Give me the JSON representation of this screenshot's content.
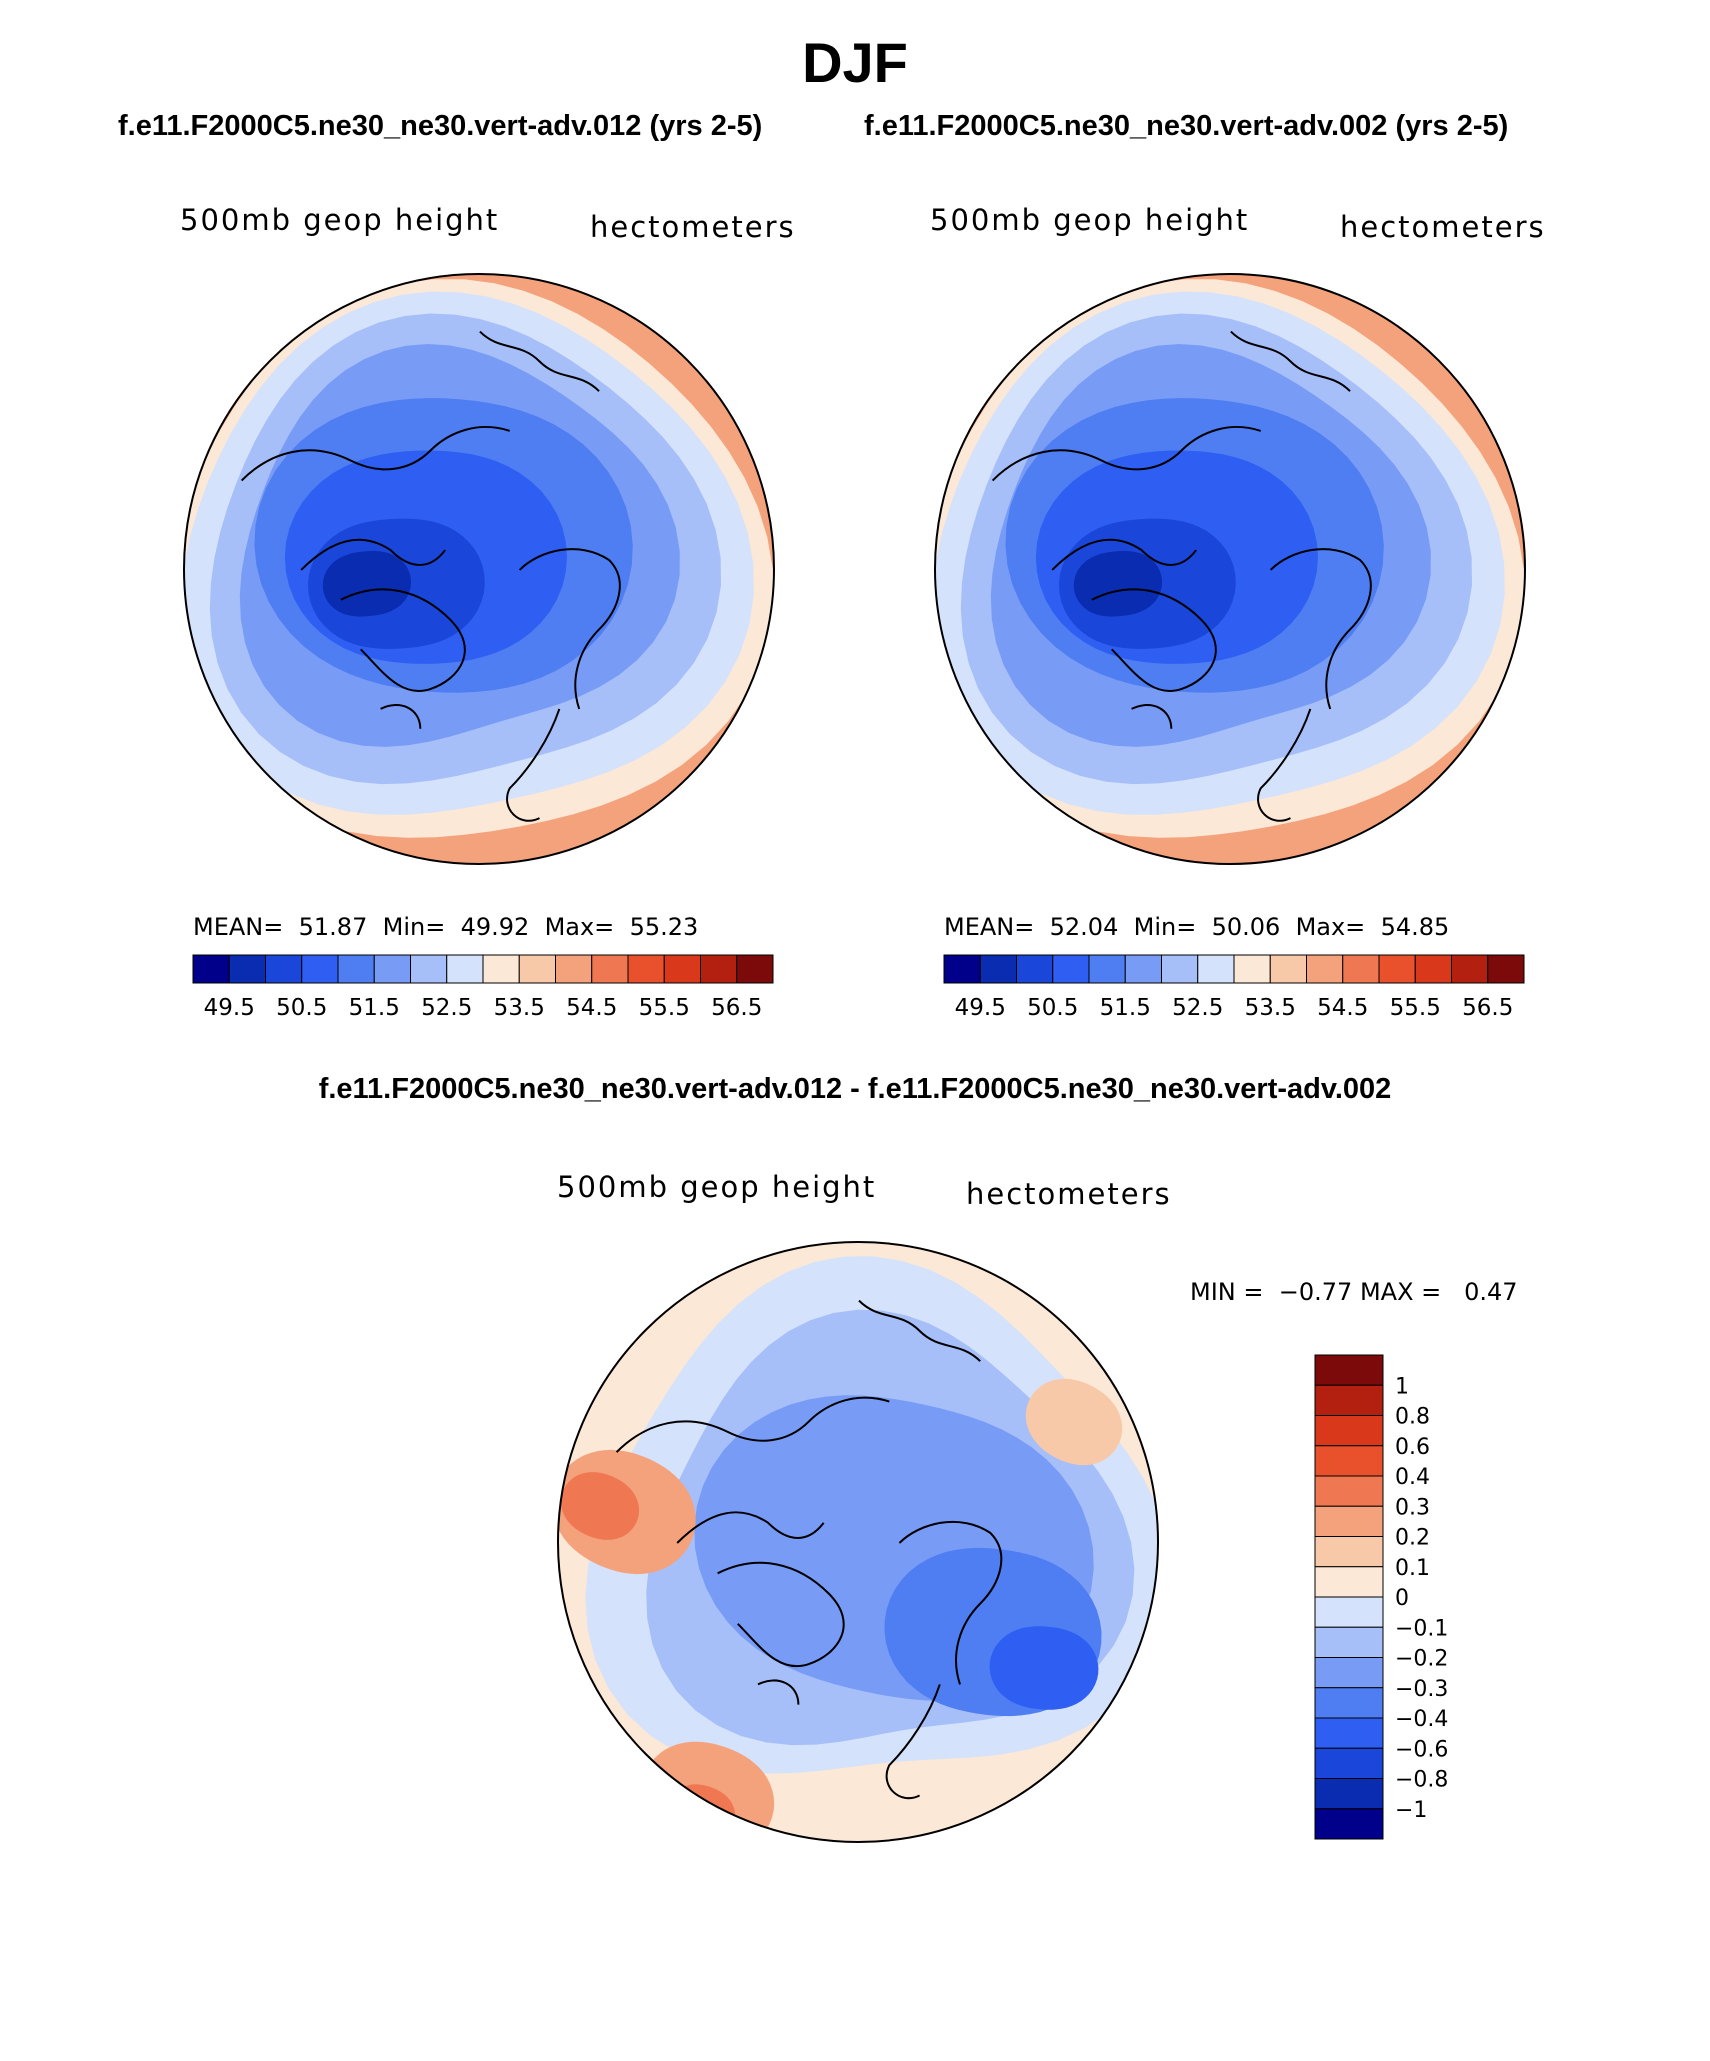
{
  "header": {
    "season": "DJF",
    "case_a_title": "f.e11.F2000C5.ne30_ne30.vert-adv.012 (yrs 2-5)",
    "case_b_title": "f.e11.F2000C5.ne30_ne30.vert-adv.002 (yrs 2-5)",
    "diff_title": "f.e11.F2000C5.ne30_ne30.vert-adv.012 - f.e11.F2000C5.ne30_ne30.vert-adv.002"
  },
  "panels": {
    "case_a": {
      "variable": "500mb geop height",
      "units": "hectometers",
      "mean_label": "MEAN=",
      "mean": "51.87",
      "min_label": "Min=",
      "min": "49.92",
      "max_label": "Max=",
      "max": "55.23"
    },
    "case_b": {
      "variable": "500mb geop height",
      "units": "hectometers",
      "mean_label": "MEAN=",
      "mean": "52.04",
      "min_label": "Min=",
      "min": "50.06",
      "max_label": "Max=",
      "max": "54.85"
    },
    "diff": {
      "variable": "500mb geop height",
      "units": "hectometers",
      "min_label": "MIN =",
      "min": "−0.77",
      "max_label": "MAX =",
      "max": "0.47"
    }
  },
  "chart_data": [
    {
      "type": "heatmap",
      "projection": "north-polar-stereographic",
      "title": "f.e11.F2000C5.ne30_ne30.vert-adv.012 (yrs 2-5)",
      "variable": "500mb geop height",
      "units": "hectometers",
      "mean": 51.87,
      "min": 49.92,
      "max": 55.23,
      "contour_levels": [
        49.5,
        50,
        50.5,
        51,
        51.5,
        52,
        52.5,
        53,
        53.5,
        54,
        54.5,
        55,
        55.5,
        56,
        56.5
      ],
      "colorbar_tick_labels": [
        "49.5",
        "50.5",
        "51.5",
        "52.5",
        "53.5",
        "54.5",
        "55.5",
        "56.5"
      ],
      "colors": [
        "#00008b",
        "#0a2cb0",
        "#1a46d9",
        "#2e5ff2",
        "#4f7ef2",
        "#789cf6",
        "#a6bff8",
        "#d4e2fb",
        "#fce8d6",
        "#f8c9a8",
        "#f4a27c",
        "#ef7852",
        "#e8512c",
        "#d9381a",
        "#b3200f",
        "#7d0a0a"
      ]
    },
    {
      "type": "heatmap",
      "projection": "north-polar-stereographic",
      "title": "f.e11.F2000C5.ne30_ne30.vert-adv.002 (yrs 2-5)",
      "variable": "500mb geop height",
      "units": "hectometers",
      "mean": 52.04,
      "min": 50.06,
      "max": 54.85,
      "contour_levels": [
        49.5,
        50,
        50.5,
        51,
        51.5,
        52,
        52.5,
        53,
        53.5,
        54,
        54.5,
        55,
        55.5,
        56,
        56.5
      ],
      "colorbar_tick_labels": [
        "49.5",
        "50.5",
        "51.5",
        "52.5",
        "53.5",
        "54.5",
        "55.5",
        "56.5"
      ],
      "colors": [
        "#00008b",
        "#0a2cb0",
        "#1a46d9",
        "#2e5ff2",
        "#4f7ef2",
        "#789cf6",
        "#a6bff8",
        "#d4e2fb",
        "#fce8d6",
        "#f8c9a8",
        "#f4a27c",
        "#ef7852",
        "#e8512c",
        "#d9381a",
        "#b3200f",
        "#7d0a0a"
      ]
    },
    {
      "type": "heatmap",
      "projection": "north-polar-stereographic",
      "title": "f.e11.F2000C5.ne30_ne30.vert-adv.012 - f.e11.F2000C5.ne30_ne30.vert-adv.002",
      "variable": "500mb geop height",
      "units": "hectometers",
      "min": -0.77,
      "max": 0.47,
      "contour_levels": [
        -1,
        -0.8,
        -0.6,
        -0.4,
        -0.3,
        -0.2,
        -0.1,
        0,
        0.1,
        0.2,
        0.3,
        0.4,
        0.6,
        0.8,
        1
      ],
      "colorbar_tick_labels": [
        "1",
        "0.8",
        "0.6",
        "0.4",
        "0.3",
        "0.2",
        "0.1",
        "0",
        "−0.1",
        "−0.2",
        "−0.3",
        "−0.4",
        "−0.6",
        "−0.8",
        "−1"
      ],
      "colors": [
        "#7d0a0a",
        "#b3200f",
        "#d9381a",
        "#e8512c",
        "#ef7852",
        "#f4a27c",
        "#f8c9a8",
        "#fce8d6",
        "#d4e2fb",
        "#a6bff8",
        "#789cf6",
        "#4f7ef2",
        "#2e5ff2",
        "#1a46d9",
        "#0a2cb0",
        "#00008b"
      ]
    }
  ]
}
